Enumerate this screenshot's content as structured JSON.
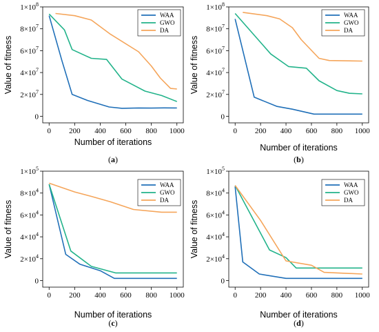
{
  "colors": {
    "WAA": "#1f6fb8",
    "GWO": "#22b38a",
    "DA": "#f5a55a"
  },
  "chart_data": [
    {
      "type": "line",
      "panel_label": "a",
      "xlabel": "Number of iterations",
      "ylabel": "Value of fitness",
      "xlim": [
        -50,
        1050
      ],
      "ylim": [
        -6000000,
        100000000
      ],
      "xticks": [
        0,
        200,
        400,
        600,
        800,
        1000
      ],
      "yticks": [
        {
          "value": 0,
          "mantissa": "0",
          "exp": ""
        },
        {
          "value": 20000000,
          "mantissa": "2×10",
          "exp": "7"
        },
        {
          "value": 40000000,
          "mantissa": "4×10",
          "exp": "7"
        },
        {
          "value": 60000000,
          "mantissa": "6×10",
          "exp": "7"
        },
        {
          "value": 80000000,
          "mantissa": "8×10",
          "exp": "7"
        },
        {
          "value": 100000000,
          "mantissa": "1×10",
          "exp": "8"
        }
      ],
      "series": [
        {
          "name": "WAA",
          "x": [
            0,
            100,
            180,
            300,
            470,
            570,
            700,
            800,
            900,
            1000
          ],
          "y": [
            92000000,
            51000000,
            20000000,
            14500000,
            8500000,
            7300000,
            7600000,
            7500000,
            7700000,
            7600000
          ]
        },
        {
          "name": "GWO",
          "x": [
            0,
            120,
            180,
            330,
            450,
            570,
            750,
            880,
            1000
          ],
          "y": [
            93500000,
            79000000,
            61000000,
            53000000,
            52000000,
            34000000,
            23000000,
            19000000,
            13500000
          ]
        },
        {
          "name": "DA",
          "x": [
            50,
            200,
            330,
            480,
            700,
            800,
            870,
            950,
            1000
          ],
          "y": [
            94000000,
            92000000,
            88000000,
            75000000,
            59000000,
            46000000,
            35000000,
            25500000,
            25000000
          ]
        }
      ]
    },
    {
      "type": "line",
      "panel_label": "b",
      "xlabel": "Number of iterations",
      "ylabel": "Value of fitness",
      "xlim": [
        -50,
        1050
      ],
      "ylim": [
        -6000000,
        100000000
      ],
      "xticks": [
        0,
        200,
        400,
        600,
        800,
        1000
      ],
      "yticks": [
        {
          "value": 0,
          "mantissa": "0",
          "exp": ""
        },
        {
          "value": 20000000,
          "mantissa": "2×10",
          "exp": "7"
        },
        {
          "value": 40000000,
          "mantissa": "4×10",
          "exp": "7"
        },
        {
          "value": 60000000,
          "mantissa": "6×10",
          "exp": "7"
        },
        {
          "value": 80000000,
          "mantissa": "8×10",
          "exp": "7"
        },
        {
          "value": 100000000,
          "mantissa": "1×10",
          "exp": "8"
        }
      ],
      "series": [
        {
          "name": "WAA",
          "x": [
            0,
            150,
            330,
            450,
            620,
            750,
            1000
          ],
          "y": [
            89000000,
            17500000,
            9000000,
            6500000,
            2000000,
            2000000,
            2000000
          ]
        },
        {
          "name": "GWO",
          "x": [
            0,
            280,
            420,
            560,
            660,
            800,
            900,
            1000
          ],
          "y": [
            94000000,
            57000000,
            45500000,
            44000000,
            32500000,
            23500000,
            21000000,
            20500000
          ]
        },
        {
          "name": "DA",
          "x": [
            60,
            250,
            350,
            450,
            520,
            660,
            740,
            1000
          ],
          "y": [
            95000000,
            92000000,
            89000000,
            81000000,
            70000000,
            53000000,
            51000000,
            50500000
          ]
        }
      ]
    },
    {
      "type": "line",
      "panel_label": "c",
      "xlabel": "Number of iterations",
      "ylabel": "Value of fitness",
      "xlim": [
        -50,
        1050
      ],
      "ylim": [
        -6000,
        100000
      ],
      "xticks": [
        0,
        200,
        400,
        600,
        800,
        1000
      ],
      "yticks": [
        {
          "value": 0,
          "mantissa": "0",
          "exp": ""
        },
        {
          "value": 20000,
          "mantissa": "2×10",
          "exp": "4"
        },
        {
          "value": 40000,
          "mantissa": "4×10",
          "exp": "4"
        },
        {
          "value": 60000,
          "mantissa": "6×10",
          "exp": "4"
        },
        {
          "value": 80000,
          "mantissa": "8×10",
          "exp": "4"
        },
        {
          "value": 100000,
          "mantissa": "1×10",
          "exp": "5"
        }
      ],
      "series": [
        {
          "name": "WAA",
          "x": [
            0,
            130,
            240,
            400,
            510,
            700,
            1000
          ],
          "y": [
            88000,
            24000,
            15000,
            9000,
            2000,
            2000,
            2000
          ]
        },
        {
          "name": "GWO",
          "x": [
            0,
            170,
            330,
            520,
            700,
            1000
          ],
          "y": [
            88000,
            27000,
            13000,
            7000,
            7000,
            7000
          ]
        },
        {
          "name": "DA",
          "x": [
            0,
            200,
            330,
            480,
            660,
            880,
            1000
          ],
          "y": [
            89000,
            81000,
            77000,
            72000,
            65000,
            62500,
            62500
          ]
        }
      ]
    },
    {
      "type": "line",
      "panel_label": "d",
      "xlabel": "Number of iterations",
      "ylabel": "Value of fitness",
      "xlim": [
        -50,
        1050
      ],
      "ylim": [
        -6000,
        100000
      ],
      "xticks": [
        0,
        200,
        400,
        600,
        800,
        1000
      ],
      "yticks": [
        {
          "value": 0,
          "mantissa": "0",
          "exp": ""
        },
        {
          "value": 20000,
          "mantissa": "2×10",
          "exp": "4"
        },
        {
          "value": 40000,
          "mantissa": "4×10",
          "exp": "4"
        },
        {
          "value": 60000,
          "mantissa": "6×10",
          "exp": "4"
        },
        {
          "value": 80000,
          "mantissa": "8×10",
          "exp": "4"
        },
        {
          "value": 100000,
          "mantissa": "1×10",
          "exp": "5"
        }
      ],
      "series": [
        {
          "name": "WAA",
          "x": [
            0,
            60,
            190,
            400,
            600,
            800,
            1000
          ],
          "y": [
            86000,
            17000,
            6000,
            2000,
            2000,
            2000,
            2000
          ]
        },
        {
          "name": "GWO",
          "x": [
            0,
            270,
            400,
            480,
            700,
            1000
          ],
          "y": [
            87000,
            28000,
            21000,
            11500,
            11500,
            11500
          ]
        },
        {
          "name": "DA",
          "x": [
            0,
            200,
            400,
            600,
            700,
            1000
          ],
          "y": [
            87000,
            55000,
            18000,
            14000,
            7500,
            6000
          ]
        }
      ]
    }
  ]
}
